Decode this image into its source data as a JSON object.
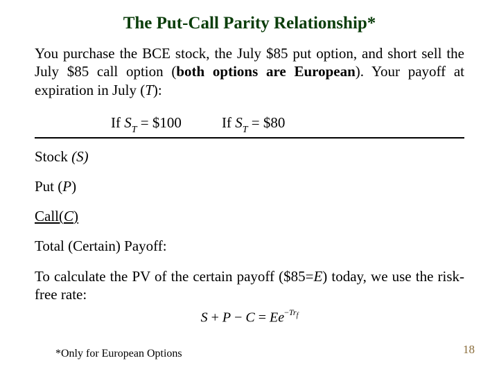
{
  "title": "The Put-Call Parity Relationship*",
  "intro_part1": "You purchase the BCE stock,  the July $85 put option, and short sell the July $85 call option (",
  "intro_bold": "both options are European",
  "intro_part2": "). Your payoff at expiration in July (",
  "intro_T": "T",
  "intro_part3": "):",
  "table": {
    "col1_prefix": "If  ",
    "col1_S": "S",
    "col1_sub": "T",
    "col1_eq": " = $100",
    "col2_prefix": "If  ",
    "col2_S": "S",
    "col2_sub": "T",
    "col2_eq": " = $80",
    "row1_label": "Stock ",
    "row1_paren": "(S)",
    "row2_label": "Put (",
    "row2_var": "P",
    "row2_close": ")",
    "row3_label": "Call(",
    "row3_var": "C",
    "row3_close": ")   "
  },
  "total_label": "Total (Certain) Payoff:",
  "pv_part1": "To calculate the PV of the certain payoff ($85=",
  "pv_E": "E",
  "pv_part2": ") today, we use the risk-free rate:",
  "formula": {
    "S": "S",
    "plus": " + ",
    "P": "P",
    "minus": " − ",
    "C": "C",
    "eq": " = ",
    "E": "E",
    "e": "e",
    "exp_neg": "−",
    "exp_T": "T",
    "exp_r": "r",
    "exp_f": "f"
  },
  "footnote": "*Only for European Options",
  "pagenum": "18",
  "colors": {
    "title_color": "#0a3d0a",
    "pagenum_color": "#8a6d3b"
  }
}
